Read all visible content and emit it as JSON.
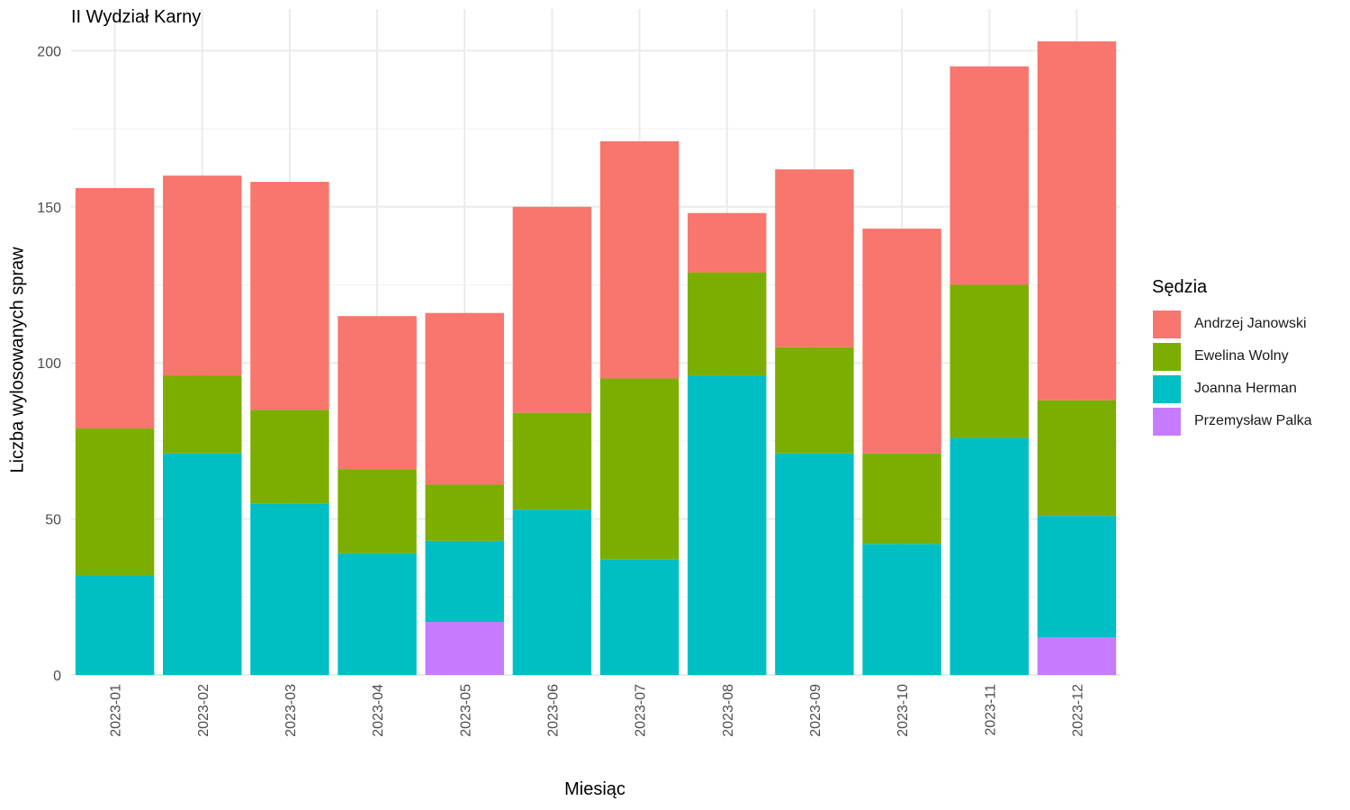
{
  "chart_data": {
    "type": "bar",
    "stacked": true,
    "title": "II Wydział Karny",
    "xlabel": "Miesiąc",
    "ylabel": "Liczba wylosowanych spraw",
    "categories": [
      "2023-01",
      "2023-02",
      "2023-03",
      "2023-04",
      "2023-05",
      "2023-06",
      "2023-07",
      "2023-08",
      "2023-09",
      "2023-10",
      "2023-11",
      "2023-12"
    ],
    "yticks": [
      0,
      50,
      100,
      150,
      200
    ],
    "ylim": [
      0,
      215
    ],
    "grid": true,
    "legend_title": "Sędzia",
    "legend_position": "right",
    "series": [
      {
        "name": "Andrzej Janowski",
        "color": "#F8766D",
        "values": [
          77,
          64,
          73,
          49,
          55,
          66,
          76,
          19,
          57,
          72,
          70,
          115
        ]
      },
      {
        "name": "Ewelina Wolny",
        "color": "#7CAE00",
        "values": [
          47,
          25,
          30,
          27,
          18,
          31,
          58,
          33,
          34,
          29,
          49,
          37
        ]
      },
      {
        "name": "Joanna Herman",
        "color": "#00BFC4",
        "values": [
          32,
          71,
          55,
          39,
          26,
          53,
          37,
          96,
          71,
          42,
          76,
          39
        ]
      },
      {
        "name": "Przemysław Palka",
        "color": "#C77CFF",
        "values": [
          0,
          0,
          0,
          0,
          17,
          0,
          0,
          0,
          0,
          0,
          0,
          12
        ]
      }
    ]
  }
}
